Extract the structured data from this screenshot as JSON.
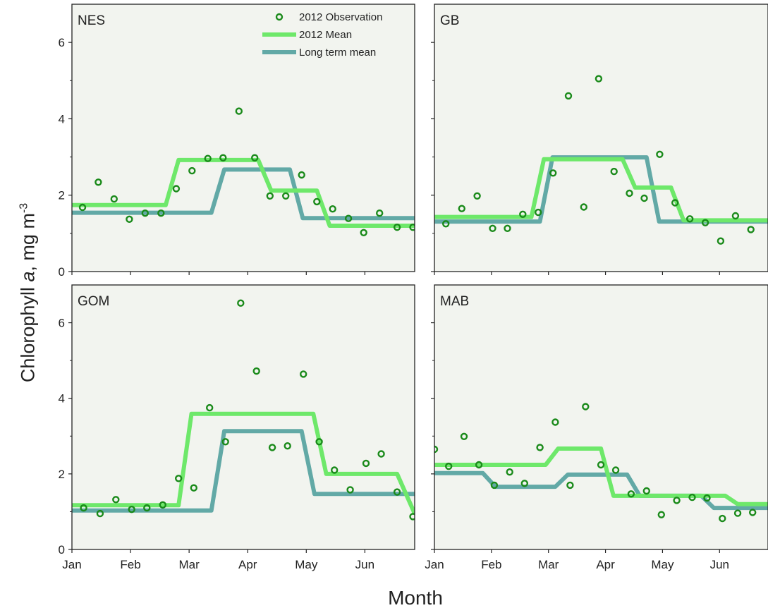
{
  "chart_data": {
    "type": "scatter+step-line",
    "xlabel": "Month",
    "ylabel": {
      "prefix": "Chlorophyll ",
      "italic": "a",
      "unit": ", mg m",
      "exp": "-3"
    },
    "months": [
      "Jan",
      "Feb",
      "Mar",
      "Apr",
      "May",
      "Jun"
    ],
    "xlim": [
      0,
      5.85
    ],
    "ylim": [
      0,
      7
    ],
    "yticks": [
      0,
      2,
      4,
      6
    ],
    "legend": {
      "placement": "top-right of first panel",
      "entries": [
        {
          "key": "obs",
          "label": "2012 Observation"
        },
        {
          "key": "mean",
          "label": "2012 Mean"
        },
        {
          "key": "ltm",
          "label": "Long term mean"
        }
      ]
    },
    "colors": {
      "obs": "#1a8a1a",
      "mean": "#6ee86a",
      "ltm": "#62a9a6",
      "bg": "#f2f4ef"
    },
    "panels": [
      {
        "label": "NES",
        "observations": [
          [
            0.18,
            1.68
          ],
          [
            0.45,
            2.34
          ],
          [
            0.72,
            1.9
          ],
          [
            0.98,
            1.37
          ],
          [
            1.25,
            1.53
          ],
          [
            1.52,
            1.53
          ],
          [
            1.78,
            2.17
          ],
          [
            2.05,
            2.64
          ],
          [
            2.32,
            2.96
          ],
          [
            2.58,
            2.98
          ],
          [
            2.85,
            4.2
          ],
          [
            3.12,
            2.98
          ],
          [
            3.38,
            1.98
          ],
          [
            3.65,
            1.98
          ],
          [
            3.92,
            2.53
          ],
          [
            4.18,
            1.83
          ],
          [
            4.45,
            1.64
          ],
          [
            4.72,
            1.39
          ],
          [
            4.98,
            1.02
          ],
          [
            5.25,
            1.53
          ],
          [
            5.55,
            1.16
          ],
          [
            5.82,
            1.16
          ]
        ],
        "mean_2012": [
          [
            0,
            1.74
          ],
          [
            1.6,
            1.74
          ],
          [
            1.82,
            2.92
          ],
          [
            3.18,
            2.92
          ],
          [
            3.4,
            2.12
          ],
          [
            4.18,
            2.12
          ],
          [
            4.4,
            1.2
          ],
          [
            5.85,
            1.2
          ]
        ],
        "long_term_mean": [
          [
            0,
            1.54
          ],
          [
            2.38,
            1.54
          ],
          [
            2.6,
            2.67
          ],
          [
            3.72,
            2.67
          ],
          [
            3.94,
            1.4
          ],
          [
            5.85,
            1.4
          ]
        ]
      },
      {
        "label": "GB",
        "observations": [
          [
            0.2,
            1.25
          ],
          [
            0.48,
            1.65
          ],
          [
            0.75,
            1.98
          ],
          [
            1.02,
            1.13
          ],
          [
            1.28,
            1.13
          ],
          [
            1.55,
            1.5
          ],
          [
            1.82,
            1.55
          ],
          [
            2.08,
            2.58
          ],
          [
            2.35,
            4.6
          ],
          [
            2.62,
            1.69
          ],
          [
            2.88,
            5.05
          ],
          [
            3.15,
            2.62
          ],
          [
            3.42,
            2.05
          ],
          [
            3.68,
            1.92
          ],
          [
            3.95,
            3.07
          ],
          [
            4.22,
            1.8
          ],
          [
            4.48,
            1.38
          ],
          [
            4.75,
            1.28
          ],
          [
            5.02,
            0.8
          ],
          [
            5.28,
            1.46
          ],
          [
            5.55,
            1.1
          ]
        ],
        "mean_2012": [
          [
            0,
            1.43
          ],
          [
            1.7,
            1.43
          ],
          [
            1.92,
            2.94
          ],
          [
            3.3,
            2.94
          ],
          [
            3.52,
            2.2
          ],
          [
            4.15,
            2.2
          ],
          [
            4.37,
            1.34
          ],
          [
            5.85,
            1.34
          ]
        ],
        "long_term_mean": [
          [
            0,
            1.31
          ],
          [
            1.85,
            1.31
          ],
          [
            2.07,
            2.99
          ],
          [
            3.72,
            2.99
          ],
          [
            3.94,
            1.31
          ],
          [
            5.85,
            1.31
          ]
        ]
      },
      {
        "label": "GOM",
        "observations": [
          [
            0.2,
            1.1
          ],
          [
            0.48,
            0.95
          ],
          [
            0.75,
            1.32
          ],
          [
            1.02,
            1.06
          ],
          [
            1.28,
            1.1
          ],
          [
            1.55,
            1.18
          ],
          [
            1.82,
            1.88
          ],
          [
            2.08,
            1.63
          ],
          [
            2.35,
            3.75
          ],
          [
            2.62,
            2.85
          ],
          [
            2.88,
            6.52
          ],
          [
            3.15,
            4.72
          ],
          [
            3.42,
            2.7
          ],
          [
            3.68,
            2.74
          ],
          [
            3.95,
            4.64
          ],
          [
            4.22,
            2.85
          ],
          [
            4.48,
            2.1
          ],
          [
            4.75,
            1.58
          ],
          [
            5.02,
            2.28
          ],
          [
            5.28,
            2.53
          ],
          [
            5.55,
            1.52
          ],
          [
            5.82,
            0.87
          ]
        ],
        "mean_2012": [
          [
            0,
            1.17
          ],
          [
            1.82,
            1.17
          ],
          [
            2.04,
            3.59
          ],
          [
            4.12,
            3.59
          ],
          [
            4.34,
            2.0
          ],
          [
            5.55,
            2.0
          ],
          [
            5.85,
            0.95
          ]
        ],
        "long_term_mean": [
          [
            0,
            1.03
          ],
          [
            2.38,
            1.03
          ],
          [
            2.6,
            3.13
          ],
          [
            3.92,
            3.13
          ],
          [
            4.14,
            1.47
          ],
          [
            5.85,
            1.47
          ]
        ]
      },
      {
        "label": "MAB",
        "observations": [
          [
            0.0,
            2.65
          ],
          [
            0.25,
            2.2
          ],
          [
            0.52,
            2.99
          ],
          [
            0.78,
            2.24
          ],
          [
            1.05,
            1.7
          ],
          [
            1.32,
            2.05
          ],
          [
            1.58,
            1.75
          ],
          [
            1.85,
            2.7
          ],
          [
            2.12,
            3.37
          ],
          [
            2.38,
            1.7
          ],
          [
            2.65,
            3.78
          ],
          [
            2.92,
            2.24
          ],
          [
            3.18,
            2.1
          ],
          [
            3.45,
            1.47
          ],
          [
            3.72,
            1.55
          ],
          [
            3.98,
            0.92
          ],
          [
            4.25,
            1.3
          ],
          [
            4.52,
            1.38
          ],
          [
            4.78,
            1.36
          ],
          [
            5.05,
            0.82
          ],
          [
            5.32,
            0.96
          ],
          [
            5.58,
            0.98
          ]
        ],
        "mean_2012": [
          [
            0,
            2.24
          ],
          [
            1.95,
            2.24
          ],
          [
            2.17,
            2.67
          ],
          [
            2.92,
            2.67
          ],
          [
            3.14,
            1.42
          ],
          [
            5.1,
            1.42
          ],
          [
            5.32,
            1.2
          ],
          [
            5.85,
            1.2
          ]
        ],
        "long_term_mean": [
          [
            0,
            2.02
          ],
          [
            0.85,
            2.02
          ],
          [
            1.07,
            1.66
          ],
          [
            2.12,
            1.66
          ],
          [
            2.34,
            1.98
          ],
          [
            3.38,
            1.98
          ],
          [
            3.6,
            1.42
          ],
          [
            4.68,
            1.42
          ],
          [
            4.9,
            1.1
          ],
          [
            5.85,
            1.1
          ]
        ]
      }
    ]
  }
}
